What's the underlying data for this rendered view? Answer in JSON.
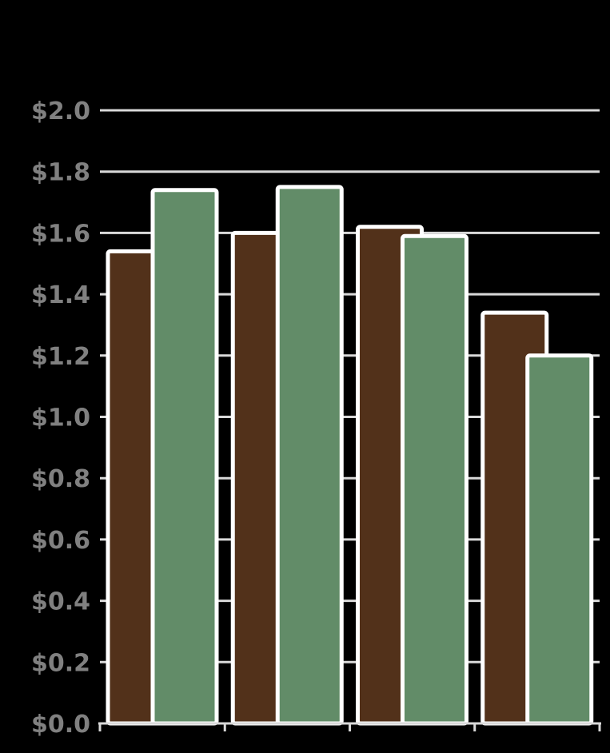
{
  "chart_data": {
    "type": "bar",
    "title": "",
    "xlabel": "",
    "ylabel": "",
    "categories": [
      "",
      "",
      "",
      ""
    ],
    "series": [
      {
        "color": "#52311a",
        "values": [
          1.54,
          1.6,
          1.62,
          1.34
        ]
      },
      {
        "color": "#628c68",
        "values": [
          1.74,
          1.75,
          1.59,
          1.2
        ]
      }
    ],
    "ylim": [
      0,
      2.0
    ],
    "yticks": [
      {
        "value": 0.0,
        "label": "$0.0"
      },
      {
        "value": 0.2,
        "label": "$0.2"
      },
      {
        "value": 0.4,
        "label": "$0.4"
      },
      {
        "value": 0.6,
        "label": "$0.6"
      },
      {
        "value": 0.8,
        "label": "$0.8"
      },
      {
        "value": 1.0,
        "label": "$1.0"
      },
      {
        "value": 1.2,
        "label": "$1.2"
      },
      {
        "value": 1.4,
        "label": "$1.4"
      },
      {
        "value": 1.6,
        "label": "$1.6"
      },
      {
        "value": 1.8,
        "label": "$1.8"
      },
      {
        "value": 2.0,
        "label": "$2.0"
      }
    ],
    "grid": true,
    "gridColor": "#d9d9d9",
    "tickLabelColor": "#808080",
    "barEdgeColor": "#ffffff",
    "legend": "none"
  }
}
